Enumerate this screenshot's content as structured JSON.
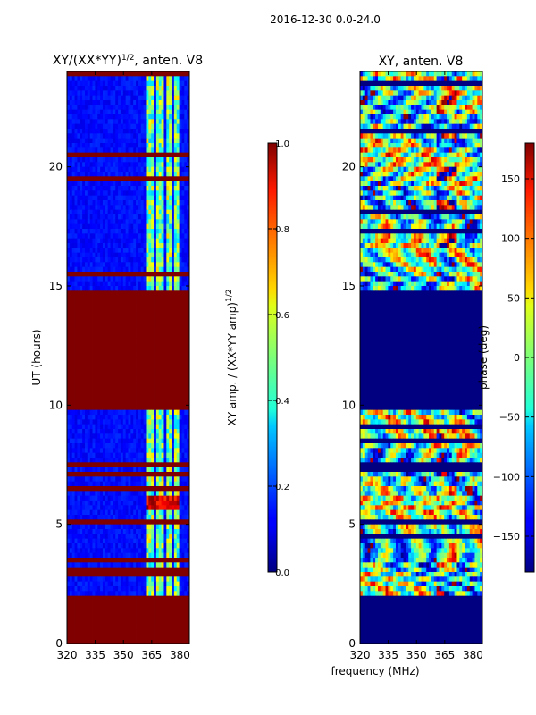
{
  "figure_title": "2016-12-30 0.0-24.0",
  "chart_data": [
    {
      "type": "heatmap",
      "title": "XY/(XX*YY)^1/2, anten. V8",
      "title_main": "XY/(XX*YY)",
      "title_exp": "1/2",
      "title_tail": ", anten. V8",
      "xlabel": "",
      "ylabel": "UT (hours)",
      "xlim": [
        320,
        385
      ],
      "ylim": [
        0,
        24
      ],
      "x_ticks": [
        320,
        335,
        350,
        365,
        380
      ],
      "y_ticks": [
        0,
        5,
        10,
        15,
        20
      ],
      "colorbar": {
        "label_main": "XY amp. / (XX*YY amp)",
        "label_exp": "1/2",
        "range": [
          0.0,
          1.0
        ],
        "ticks": [
          "0.0",
          "0.2",
          "0.4",
          "0.6",
          "0.8",
          "1.0"
        ]
      },
      "saturated_bands_hours": [
        [
          0,
          2.0
        ],
        [
          9.8,
          14.8
        ]
      ],
      "hot_region": {
        "hours": [
          5.6,
          6.3
        ],
        "mhz": [
          362,
          380
        ]
      },
      "high_channels_mhz": [
        [
          362,
          366
        ],
        [
          368,
          371
        ],
        [
          373,
          375
        ],
        [
          377,
          379
        ]
      ]
    },
    {
      "type": "heatmap",
      "title": "XY, anten. V8",
      "xlabel": "frequency (MHz)",
      "ylabel": "",
      "xlim": [
        320,
        385
      ],
      "ylim": [
        0,
        24
      ],
      "x_ticks": [
        320,
        335,
        350,
        365,
        380
      ],
      "y_ticks": [
        0,
        5,
        10,
        15,
        20
      ],
      "colorbar": {
        "label": "phase (deg)",
        "range": [
          -180,
          180
        ],
        "ticks": [
          "150",
          "100",
          "50",
          "0",
          "−50",
          "−100",
          "−150"
        ]
      },
      "empty_bands_hours": [
        [
          0,
          2.0
        ],
        [
          9.8,
          14.8
        ]
      ]
    }
  ],
  "colors": {
    "dark_red": "#800000",
    "dark_blue": "#000080"
  }
}
